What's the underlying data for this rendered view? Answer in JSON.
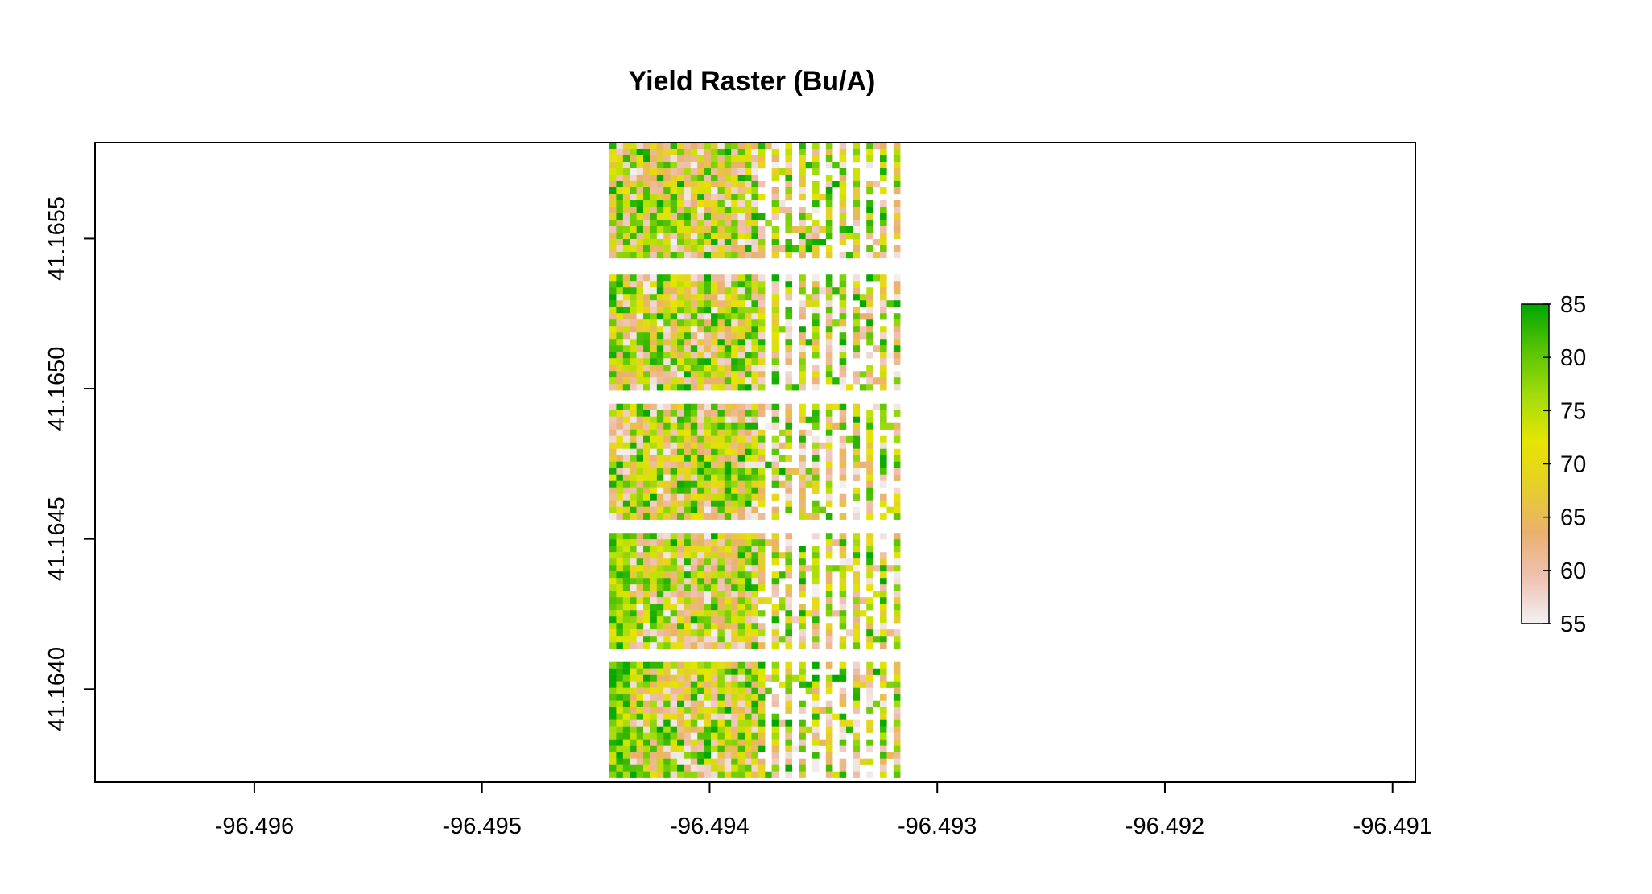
{
  "chart_data": {
    "type": "heatmap",
    "title": "Yield Raster (Bu/A)",
    "xlabel": "",
    "ylabel": "",
    "xlim": [
      -96.4967,
      -96.4909
    ],
    "ylim": [
      41.16369,
      41.16582
    ],
    "x_ticks": [
      -96.496,
      -96.495,
      -96.494,
      -96.493,
      -96.492,
      -96.491
    ],
    "x_tick_labels": [
      "-96.496",
      "-96.495",
      "-96.494",
      "-96.493",
      "-96.492",
      "-96.491"
    ],
    "y_ticks": [
      41.164,
      41.1645,
      41.165,
      41.1655
    ],
    "y_tick_labels": [
      "41.1640",
      "41.1645",
      "41.1650",
      "41.1655"
    ],
    "raster_extent": {
      "x": [
        -96.49444,
        -96.49315
      ],
      "y": [
        41.16369,
        41.16582
      ],
      "dense_columns_end_x": -96.4938
    },
    "strips": [
      {
        "y_bottom": 41.16542,
        "y_top": 41.16582
      },
      {
        "y_bottom": 41.16499,
        "y_top": 41.16538
      },
      {
        "y_bottom": 41.16456,
        "y_top": 41.16495
      },
      {
        "y_bottom": 41.16413,
        "y_top": 41.16452
      },
      {
        "y_bottom": 41.16369,
        "y_top": 41.16409
      }
    ],
    "legend": {
      "position": "right",
      "min": 55,
      "max": 85,
      "ticks": [
        55,
        60,
        65,
        70,
        75,
        80,
        85
      ],
      "tick_labels": [
        "55",
        "60",
        "65",
        "70",
        "75",
        "80",
        "85"
      ],
      "colors": [
        "#f2f2f2",
        "#efc2b3",
        "#eab06e",
        "#e6cf2a",
        "#e5e500",
        "#a3dc0c",
        "#57c402",
        "#00a600"
      ]
    },
    "grid": false,
    "box": true
  }
}
